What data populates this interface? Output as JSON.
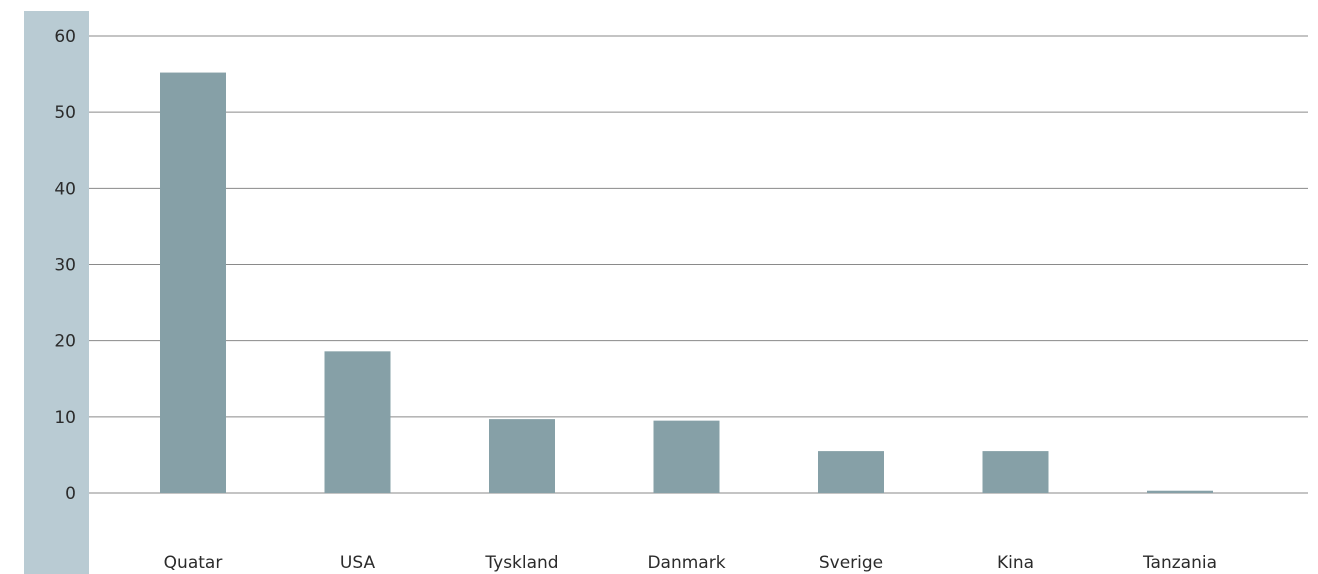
{
  "colors": {
    "axis_band": "#b9cbd3",
    "bar": "#86a0a7",
    "gridline": "#8a8a8a",
    "text": "#2b2b2b"
  },
  "chart_data": {
    "type": "bar",
    "title": "",
    "xlabel": "",
    "ylabel": "",
    "categories": [
      "Quatar",
      "USA",
      "Tyskland",
      "Danmark",
      "Sverige",
      "Kina",
      "Tanzania"
    ],
    "values": [
      55.2,
      18.6,
      9.7,
      9.5,
      5.5,
      5.5,
      0.3
    ],
    "ylim": [
      0,
      60
    ],
    "yticks": [
      "0",
      "10",
      "20",
      "30",
      "40",
      "50",
      "60"
    ],
    "grid": true,
    "legend": "none"
  }
}
